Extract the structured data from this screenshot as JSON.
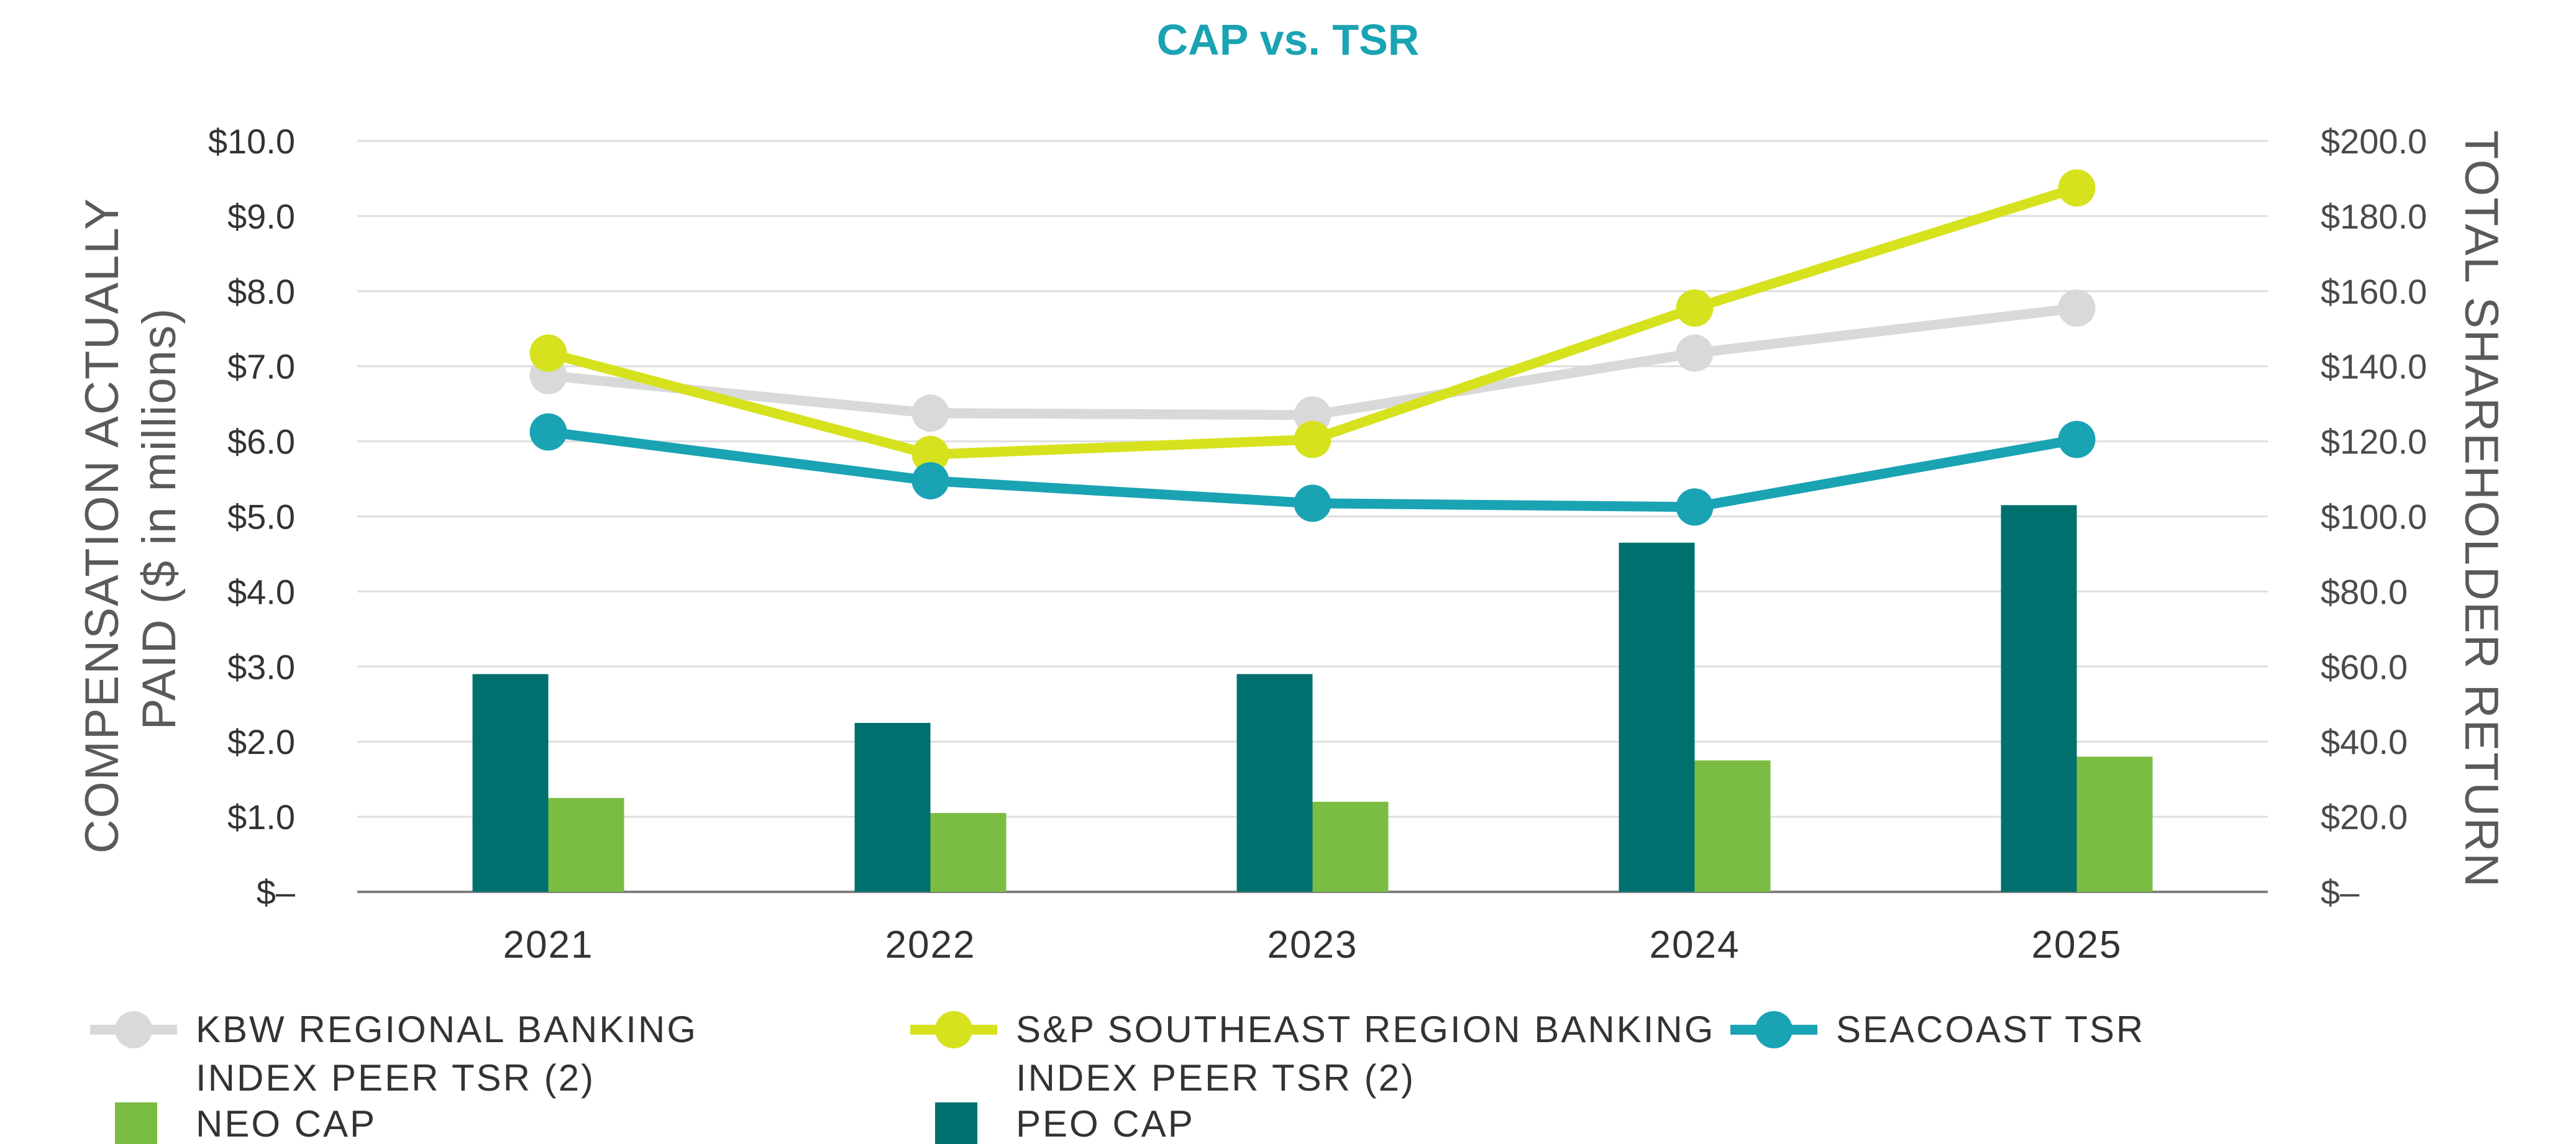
{
  "chart_data": {
    "type": "bar+line",
    "title": "CAP vs. TSR",
    "categories": [
      "2021",
      "2022",
      "2023",
      "2024",
      "2025"
    ],
    "y_left": {
      "label_lines": [
        "COMPENSATION ACTUALLY",
        "PAID ($ in millions)"
      ],
      "ylim": [
        0,
        10
      ],
      "ticks": [
        "$–",
        "$1.0",
        "$2.0",
        "$3.0",
        "$4.0",
        "$5.0",
        "$6.0",
        "$7.0",
        "$8.0",
        "$9.0",
        "$10.0"
      ]
    },
    "y_right": {
      "label": "TOTAL SHAREHOLDER RETURN",
      "ylim": [
        0,
        200
      ],
      "ticks": [
        "$–",
        "$20.0",
        "$40.0",
        "$60.0",
        "$80.0",
        "$100.0",
        "$120.0",
        "$140.0",
        "$160.0",
        "$180.0",
        "$200.0"
      ]
    },
    "grid": true,
    "bars": [
      {
        "name": "PEO CAP",
        "color": "#00706e",
        "axis": "left",
        "values": [
          2.9,
          2.25,
          2.9,
          4.65,
          5.15
        ]
      },
      {
        "name": "NEO CAP",
        "color": "#7bbd42",
        "axis": "left",
        "values": [
          1.25,
          1.05,
          1.2,
          1.75,
          1.8
        ]
      }
    ],
    "lines": [
      {
        "name": "KBW REGIONAL BANKING INDEX PEER TSR (2)",
        "color": "#d9d9d9",
        "axis": "right",
        "values": [
          137.5,
          127.5,
          127.0,
          143.5,
          155.5
        ]
      },
      {
        "name": "S&P SOUTHEAST REGION BANKING INDEX PEER TSR (2)",
        "color": "#d6e21e",
        "axis": "right",
        "values": [
          143.5,
          116.5,
          120.5,
          155.5,
          187.5
        ]
      },
      {
        "name": "SEACOAST TSR",
        "color": "#1aa3b3",
        "axis": "right",
        "values": [
          122.5,
          109.5,
          103.5,
          102.5,
          120.5
        ]
      }
    ],
    "legend": {
      "position": "bottom",
      "items": [
        {
          "key": "kbw",
          "type": "line",
          "color": "#d9d9d9",
          "lines": [
            "KBW REGIONAL BANKING",
            "INDEX PEER TSR (2)"
          ]
        },
        {
          "key": "sp",
          "type": "line",
          "color": "#d6e21e",
          "lines": [
            "S&P SOUTHEAST REGION BANKING",
            "INDEX PEER TSR (2)"
          ]
        },
        {
          "key": "seacoast",
          "type": "line",
          "color": "#1aa3b3",
          "lines": [
            "SEACOAST TSR"
          ]
        },
        {
          "key": "neo",
          "type": "bar",
          "color": "#7bbd42",
          "lines": [
            "NEO CAP"
          ]
        },
        {
          "key": "peo",
          "type": "bar",
          "color": "#00706e",
          "lines": [
            "PEO CAP"
          ]
        }
      ]
    }
  }
}
